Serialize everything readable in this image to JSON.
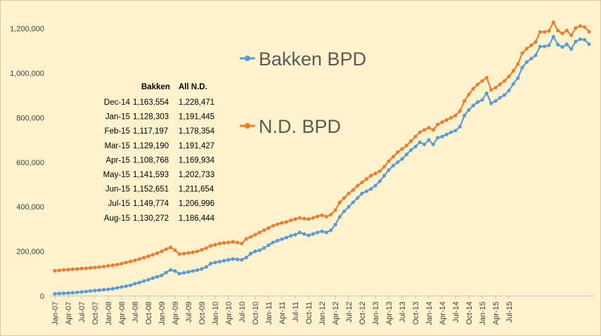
{
  "chart_data": {
    "type": "line",
    "title": "",
    "xlabel": "",
    "ylabel": "",
    "ylim": [
      0,
      1300000
    ],
    "yticks": [
      0,
      200000,
      400000,
      600000,
      800000,
      1000000,
      1200000
    ],
    "ytick_labels": [
      "0",
      "200,000",
      "400,000",
      "600,000",
      "800,000",
      "1,000,000",
      "1,200,000"
    ],
    "xtick_labels": [
      "Jan-07",
      "Apr-07",
      "Jul-07",
      "Oct-07",
      "Jan-08",
      "Apr-08",
      "Jul-08",
      "Oct-08",
      "Jan-09",
      "Apr-09",
      "Jul-09",
      "Oct-09",
      "Jan-10",
      "Apr-10",
      "Jul-10",
      "Oct-10",
      "Jan-11",
      "Apr-11",
      "Jul-11",
      "Oct-11",
      "Jan-12",
      "Apr-12",
      "Jul-12",
      "Oct-12",
      "Jan-13",
      "Apr-13",
      "Jul-13",
      "Oct-13",
      "Jan-14",
      "Apr-14",
      "Jul-14",
      "Oct-14",
      "Jan-15",
      "Apr-15",
      "Jul-15"
    ],
    "grid": false,
    "legend": [
      {
        "name": "Bakken BPD",
        "color": "#5B9BD5"
      },
      {
        "name": "N.D. BPD",
        "color": "#ED7D31"
      }
    ],
    "series": [
      {
        "name": "Bakken BPD",
        "color": "#5B9BD5",
        "values": [
          10000,
          11000,
          12000,
          13000,
          14000,
          16000,
          18000,
          20000,
          22000,
          24000,
          26000,
          28000,
          30000,
          32000,
          36000,
          40000,
          44000,
          48000,
          55000,
          60000,
          67000,
          73000,
          80000,
          86000,
          92000,
          105000,
          117000,
          112000,
          100000,
          104000,
          108000,
          112000,
          116000,
          121000,
          130000,
          145000,
          150000,
          154000,
          158000,
          162000,
          166000,
          164000,
          162000,
          172000,
          190000,
          200000,
          205000,
          215000,
          228000,
          240000,
          248000,
          255000,
          262000,
          270000,
          275000,
          285000,
          278000,
          272000,
          278000,
          285000,
          290000,
          285000,
          295000,
          320000,
          355000,
          380000,
          400000,
          420000,
          440000,
          460000,
          470000,
          480000,
          495000,
          515000,
          540000,
          565000,
          585000,
          600000,
          615000,
          635000,
          655000,
          670000,
          690000,
          680000,
          700000,
          680000,
          710000,
          715000,
          725000,
          735000,
          742000,
          760000,
          810000,
          835000,
          855000,
          870000,
          880000,
          910000,
          865000,
          875000,
          890000,
          902000,
          922000,
          952000,
          978000,
          1025000,
          1050000,
          1065000,
          1080000,
          1120000,
          1120000,
          1125000,
          1163554,
          1128303,
          1117197,
          1129190,
          1108768,
          1141593,
          1152651,
          1149774,
          1130272
        ]
      },
      {
        "name": "N.D. BPD",
        "color": "#ED7D31",
        "values": [
          113000,
          115000,
          117000,
          118000,
          120000,
          121000,
          123000,
          124000,
          126000,
          128000,
          130000,
          132000,
          135000,
          138000,
          141000,
          145000,
          150000,
          155000,
          160000,
          166000,
          172000,
          178000,
          185000,
          192000,
          200000,
          210000,
          218000,
          205000,
          188000,
          190000,
          193000,
          196000,
          200000,
          207000,
          215000,
          225000,
          230000,
          235000,
          238000,
          240000,
          243000,
          240000,
          235000,
          256000,
          265000,
          275000,
          285000,
          295000,
          305000,
          315000,
          322000,
          328000,
          332000,
          340000,
          345000,
          350000,
          347000,
          345000,
          350000,
          357000,
          362000,
          356000,
          365000,
          385000,
          420000,
          440000,
          460000,
          475000,
          495000,
          510000,
          525000,
          540000,
          550000,
          560000,
          580000,
          605000,
          625000,
          645000,
          660000,
          675000,
          695000,
          715000,
          735000,
          745000,
          755000,
          745000,
          770000,
          780000,
          790000,
          800000,
          810000,
          830000,
          875000,
          905000,
          930000,
          950000,
          965000,
          980000,
          925000,
          935000,
          950000,
          965000,
          985000,
          1010000,
          1040000,
          1090000,
          1110000,
          1125000,
          1140000,
          1185000,
          1185000,
          1190000,
          1228471,
          1191445,
          1178354,
          1191427,
          1169934,
          1202733,
          1211654,
          1206996,
          1186444
        ]
      }
    ],
    "annotation_table": {
      "headers": [
        "",
        "Bakken",
        "All N.D."
      ],
      "rows": [
        [
          "Dec-14",
          "1,163,554",
          "1,228,471"
        ],
        [
          "Jan-15",
          "1,128,303",
          "1,191,445"
        ],
        [
          "Feb-15",
          "1,117,197",
          "1,178,354"
        ],
        [
          "Mar-15",
          "1,129,190",
          "1,191,427"
        ],
        [
          "Apr-15",
          "1,108,768",
          "1,169,934"
        ],
        [
          "May-15",
          "1,141,593",
          "1,202,733"
        ],
        [
          "Jun-15",
          "1,152,651",
          "1,211,654"
        ],
        [
          "Jul-15",
          "1,149,774",
          "1,206,996"
        ],
        [
          "Aug-15",
          "1,130,272",
          "1,186,444"
        ]
      ]
    }
  }
}
